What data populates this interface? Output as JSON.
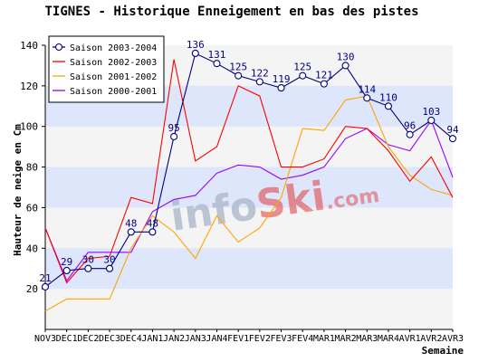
{
  "chart_data": {
    "type": "line",
    "title": "TIGNES - Historique Enneigement en bas des pistes",
    "xlabel": "Semaine",
    "ylabel": "Hauteur de neige en Cm",
    "ylim": [
      0,
      140
    ],
    "yticks": [
      20,
      40,
      60,
      80,
      100,
      120,
      140
    ],
    "grid": "horizontal bands",
    "legend_position": "top-left",
    "categories": [
      "NOV3",
      "DEC1",
      "DEC2",
      "DEC3",
      "DEC4",
      "JAN1",
      "JAN2",
      "JAN3",
      "JAN4",
      "FEV1",
      "FEV2",
      "FEV3",
      "FEV4",
      "MAR1",
      "MAR2",
      "MAR3",
      "MAR4",
      "AVR1",
      "AVR2",
      "AVR3"
    ],
    "series": [
      {
        "name": "Saison 2003-2004",
        "color": "#000080",
        "marker": "circle",
        "labels": true,
        "values": [
          21,
          29,
          30,
          30,
          48,
          48,
          95,
          136,
          131,
          125,
          122,
          119,
          125,
          121,
          130,
          114,
          110,
          96,
          103,
          94
        ]
      },
      {
        "name": "Saison 2002-2003",
        "color": "#ff0000",
        "values": [
          50,
          23,
          35,
          36,
          65,
          62,
          133,
          83,
          90,
          120,
          115,
          80,
          80,
          84,
          100,
          99,
          88,
          73,
          85,
          65
        ]
      },
      {
        "name": "Saison 2001-2002",
        "color": "#ffa500",
        "values": [
          9,
          15,
          15,
          15,
          40,
          56,
          48,
          35,
          56,
          43,
          50,
          65,
          99,
          98,
          113,
          115,
          90,
          76,
          69,
          66
        ]
      },
      {
        "name": "Saison 2000-2001",
        "color": "#9900ff",
        "values": [
          50,
          24,
          38,
          38,
          38,
          58,
          64,
          66,
          77,
          81,
          80,
          74,
          76,
          80,
          94,
          99,
          91,
          88,
          103,
          75
        ]
      }
    ]
  },
  "watermark": {
    "text": "info",
    "brand": "Ski",
    "suffix": ".com"
  },
  "colors": {
    "band": "#dde6fa",
    "background": "#ffffff",
    "plot_background": "#f4f4f4",
    "axis": "#000000"
  }
}
